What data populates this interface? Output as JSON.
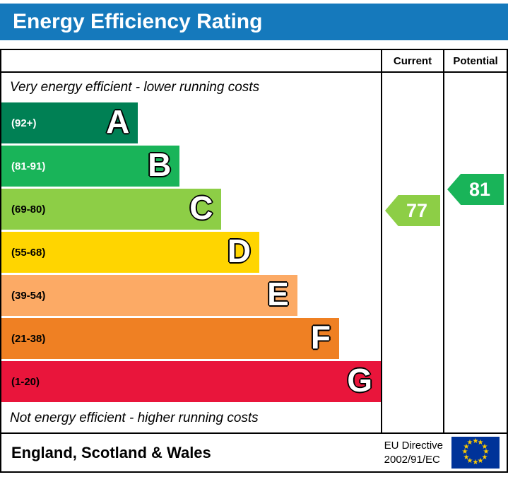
{
  "title": "Energy Efficiency Rating",
  "title_bar_color": "#1579bc",
  "columns": {
    "current": "Current",
    "potential": "Potential"
  },
  "captions": {
    "top": "Very energy efficient - lower running costs",
    "bottom": "Not energy efficient - higher running costs"
  },
  "bands": [
    {
      "letter": "A",
      "range": "(92+)",
      "color": "#008054",
      "width_pct": 36,
      "text_color": "#ffffff"
    },
    {
      "letter": "B",
      "range": "(81-91)",
      "color": "#19b459",
      "width_pct": 47,
      "text_color": "#ffffff"
    },
    {
      "letter": "C",
      "range": "(69-80)",
      "color": "#8dce46",
      "width_pct": 58,
      "text_color": "#000000"
    },
    {
      "letter": "D",
      "range": "(55-68)",
      "color": "#ffd500",
      "width_pct": 68,
      "text_color": "#000000"
    },
    {
      "letter": "E",
      "range": "(39-54)",
      "color": "#fcaa65",
      "width_pct": 78,
      "text_color": "#000000"
    },
    {
      "letter": "F",
      "range": "(21-38)",
      "color": "#ef8023",
      "width_pct": 89,
      "text_color": "#000000"
    },
    {
      "letter": "G",
      "range": "(1-20)",
      "color": "#e9153b",
      "width_pct": 100,
      "text_color": "#000000"
    }
  ],
  "current": {
    "value": "77",
    "color": "#8dce46"
  },
  "potential": {
    "value": "81",
    "color": "#19b459"
  },
  "footer": {
    "region": "England, Scotland & Wales",
    "directive_line1": "EU Directive",
    "directive_line2": "2002/91/EC",
    "flag": {
      "background": "#003399",
      "star_color": "#ffcc00",
      "star": "★"
    }
  },
  "chart_data": {
    "type": "bar",
    "title": "Energy Efficiency Rating",
    "categories": [
      "A",
      "B",
      "C",
      "D",
      "E",
      "F",
      "G"
    ],
    "ranges": [
      "92+",
      "81-91",
      "69-80",
      "55-68",
      "39-54",
      "21-38",
      "1-20"
    ],
    "colors": [
      "#008054",
      "#19b459",
      "#8dce46",
      "#ffd500",
      "#fcaa65",
      "#ef8023",
      "#e9153b"
    ],
    "bar_relative_widths_pct": [
      36,
      47,
      58,
      68,
      78,
      89,
      100
    ],
    "markers": {
      "current": 77,
      "potential": 81
    },
    "annotations": [
      "Very energy efficient - lower running costs",
      "Not energy efficient - higher running costs"
    ],
    "legend_position": "right-columns",
    "region_label": "England, Scotland & Wales",
    "directive": "EU Directive 2002/91/EC"
  }
}
